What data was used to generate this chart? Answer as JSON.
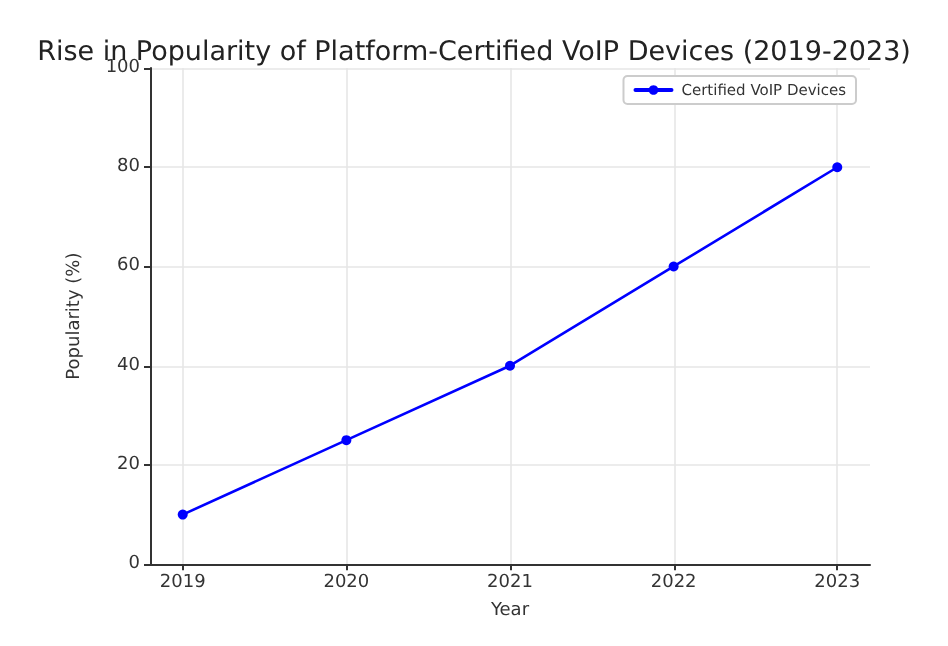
{
  "chart_data": {
    "type": "line",
    "title": "Rise in Popularity of Platform-Certified VoIP Devices (2019-2023)",
    "xlabel": "Year",
    "ylabel": "Popularity (%)",
    "x": [
      2019,
      2020,
      2021,
      2022,
      2023
    ],
    "series": [
      {
        "name": "Certified VoIP Devices",
        "color": "#0000ff",
        "values": [
          10,
          25,
          40,
          60,
          80
        ]
      }
    ],
    "xlim": [
      2018.8,
      2023.2
    ],
    "xticks": [
      2019,
      2020,
      2021,
      2022,
      2023
    ],
    "ylim": [
      0,
      100
    ],
    "yticks": [
      0,
      20,
      40,
      60,
      80,
      100
    ],
    "grid": true,
    "legend": "top right",
    "marker": "circle",
    "line_style": "solid"
  }
}
